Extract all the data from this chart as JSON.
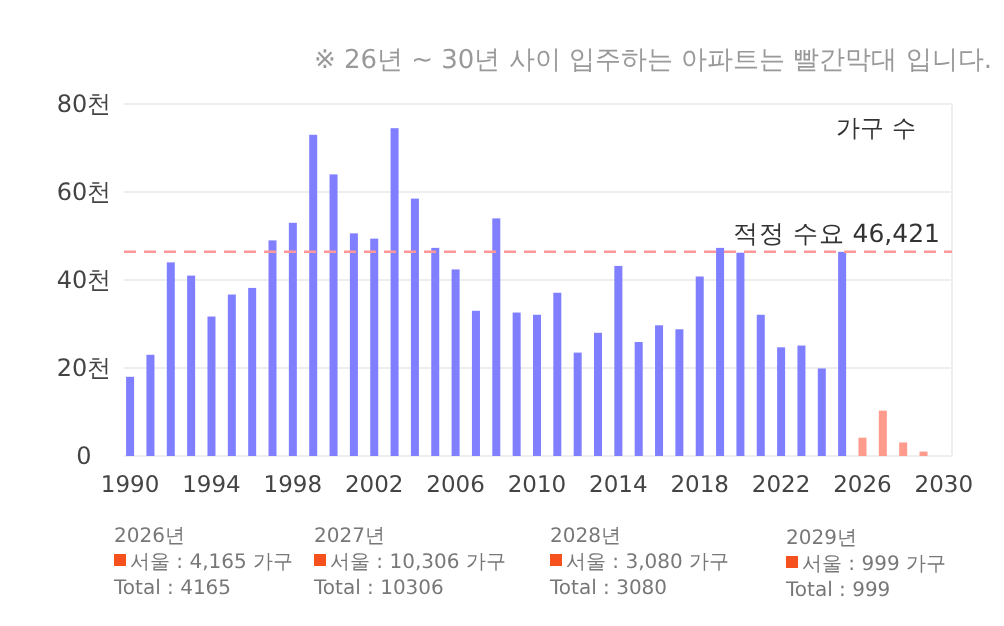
{
  "chart_data": {
    "type": "bar",
    "title": "※ 26년 ~ 30년 사이 입주하는 아파트는 빨간막대 입니다.",
    "ylabel": "가구 수",
    "x": [
      1990,
      1991,
      1992,
      1993,
      1994,
      1995,
      1996,
      1997,
      1998,
      1999,
      2000,
      2001,
      2002,
      2003,
      2004,
      2005,
      2006,
      2007,
      2008,
      2009,
      2010,
      2011,
      2012,
      2013,
      2014,
      2015,
      2016,
      2017,
      2018,
      2019,
      2020,
      2021,
      2022,
      2023,
      2024,
      2025,
      2026,
      2027,
      2028,
      2029
    ],
    "values": [
      18,
      23,
      44,
      41,
      31.7,
      36.7,
      38.2,
      49,
      53,
      73,
      64,
      50.6,
      49.4,
      74.5,
      58.5,
      47.3,
      42.4,
      33,
      54,
      32.6,
      32.1,
      37.1,
      23.5,
      28,
      43.2,
      25.9,
      29.7,
      28.8,
      40.8,
      47.3,
      46.2,
      32.1,
      24.7,
      25.1,
      19.9,
      46.4,
      4.165,
      10.306,
      3.08,
      0.999
    ],
    "colors": [
      "#7f7fff",
      "#7f7fff",
      "#7f7fff",
      "#7f7fff",
      "#7f7fff",
      "#7f7fff",
      "#7f7fff",
      "#7f7fff",
      "#7f7fff",
      "#7f7fff",
      "#7f7fff",
      "#7f7fff",
      "#7f7fff",
      "#7f7fff",
      "#7f7fff",
      "#7f7fff",
      "#7f7fff",
      "#7f7fff",
      "#7f7fff",
      "#7f7fff",
      "#7f7fff",
      "#7f7fff",
      "#7f7fff",
      "#7f7fff",
      "#7f7fff",
      "#7f7fff",
      "#7f7fff",
      "#7f7fff",
      "#7f7fff",
      "#7f7fff",
      "#7f7fff",
      "#7f7fff",
      "#7f7fff",
      "#7f7fff",
      "#7f7fff",
      "#7f7fff",
      "#ff9b8c",
      "#ff9b8c",
      "#ff9b8c",
      "#ff9b8c"
    ],
    "xlim": [
      1989.7,
      2030.4
    ],
    "xticks": [
      1990,
      1994,
      1998,
      2002,
      2006,
      2010,
      2014,
      2018,
      2022,
      2026,
      2030
    ],
    "ylim": [
      0,
      80
    ],
    "yticks": [
      0,
      {
        "value": 20,
        "label": "20천"
      },
      {
        "value": 40,
        "label": "40천"
      },
      {
        "value": 60,
        "label": "60천"
      },
      {
        "value": 80,
        "label": "80천"
      }
    ],
    "grid": "y",
    "ref_lines": [
      {
        "axis": "y",
        "value": 46.421,
        "label": "적정 수요 46,421",
        "color": "#ff9999",
        "line_style": "dashed"
      }
    ],
    "annotations": [
      "2026년\n서울 : 4,165 가구\nTotal : 4165",
      "2027년\n서울 : 10,306 가구\nTotal : 10306",
      "2028년\n서울 : 3,080 가구\nTotal : 3080",
      "2029년\n서울 : 999 가구\nTotal : 999"
    ]
  }
}
